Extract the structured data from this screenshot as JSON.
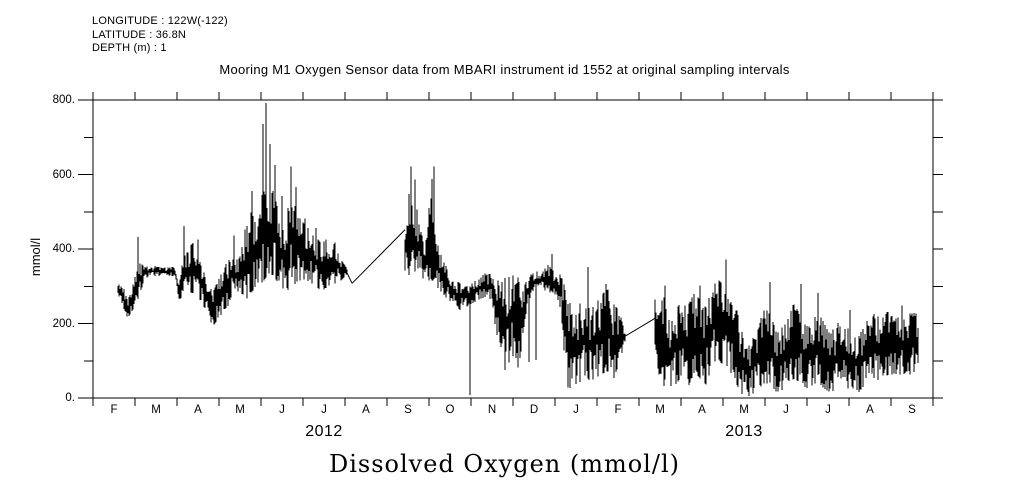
{
  "header": {
    "longitude": "LONGITUDE : 122W(-122)",
    "latitude": "LATITUDE : 36.8N",
    "depth": "DEPTH (m) : 1"
  },
  "title": "Mooring M1 Oxygen Sensor data from MBARI instrument id 1552 at original sampling intervals",
  "footer_label": "Dissolved Oxygen (mmol/l)",
  "chart_data": {
    "type": "line",
    "title": "Mooring M1 Oxygen Sensor data from MBARI instrument id 1552 at original sampling intervals",
    "xlabel": "Dissolved Oxygen (mmol/l)",
    "ylabel": "mmol/l",
    "units": "mmol/l",
    "line_color": "#000000",
    "background_color": "#ffffff",
    "grid": false,
    "ylim": [
      0,
      800
    ],
    "ytick_values": [
      0,
      200,
      400,
      600,
      800
    ],
    "ytick_labels": [
      "0.",
      "200.",
      "400.",
      "600.",
      "800."
    ],
    "yminor_step": 100,
    "x_span_months": 20,
    "x_start": "2012-02-01",
    "x_end": "2013-10-01",
    "month_labels": [
      "F",
      "M",
      "A",
      "M",
      "J",
      "J",
      "A",
      "S",
      "O",
      "N",
      "D",
      "J",
      "F",
      "M",
      "A",
      "M",
      "J",
      "J",
      "A",
      "S"
    ],
    "year_labels": [
      {
        "label": "2012",
        "month_center": 5.5
      },
      {
        "label": "2013",
        "month_center": 15.5
      }
    ],
    "series_name": "Dissolved Oxygen at Mooring M1, 1 m depth",
    "envelope_note": "triples [t_months_since_2012-02-01, band_low, band_high] in mmol/l, read from plot",
    "envelope": [
      [
        0.6,
        265,
        310
      ],
      [
        0.72,
        245,
        300
      ],
      [
        0.82,
        215,
        262
      ],
      [
        0.92,
        230,
        285
      ],
      [
        1.02,
        255,
        345
      ],
      [
        1.12,
        275,
        365
      ],
      [
        1.22,
        320,
        352
      ],
      [
        1.4,
        328,
        355
      ],
      [
        1.58,
        328,
        352
      ],
      [
        1.76,
        325,
        350
      ],
      [
        1.94,
        328,
        352
      ],
      [
        2.05,
        258,
        310
      ],
      [
        2.16,
        272,
        385
      ],
      [
        2.28,
        285,
        405
      ],
      [
        2.42,
        280,
        420
      ],
      [
        2.56,
        262,
        360
      ],
      [
        2.7,
        232,
        322
      ],
      [
        2.85,
        192,
        282
      ],
      [
        3.0,
        215,
        322
      ],
      [
        3.15,
        240,
        352
      ],
      [
        3.3,
        252,
        420
      ],
      [
        3.45,
        265,
        385
      ],
      [
        3.6,
        255,
        432
      ],
      [
        3.75,
        282,
        500
      ],
      [
        3.9,
        300,
        472
      ],
      [
        4.05,
        312,
        560
      ],
      [
        4.17,
        332,
        525
      ],
      [
        4.3,
        330,
        560
      ],
      [
        4.44,
        302,
        482
      ],
      [
        4.58,
        282,
        470
      ],
      [
        4.72,
        300,
        558
      ],
      [
        4.86,
        310,
        492
      ],
      [
        5.0,
        320,
        472
      ],
      [
        5.15,
        312,
        452
      ],
      [
        5.3,
        300,
        432
      ],
      [
        5.45,
        286,
        416
      ],
      [
        5.6,
        300,
        430
      ],
      [
        5.75,
        306,
        422
      ],
      [
        5.9,
        315,
        372
      ],
      [
        6.05,
        330,
        348
      ],
      [
        7.43,
        340,
        462
      ],
      [
        7.52,
        330,
        522
      ],
      [
        7.62,
        322,
        562
      ],
      [
        7.76,
        330,
        482
      ],
      [
        7.9,
        302,
        432
      ],
      [
        8.04,
        320,
        542
      ],
      [
        8.18,
        300,
        422
      ],
      [
        8.32,
        282,
        372
      ],
      [
        8.46,
        262,
        342
      ],
      [
        8.6,
        246,
        322
      ],
      [
        8.75,
        236,
        306
      ],
      [
        8.9,
        245,
        300
      ],
      [
        9.05,
        255,
        310
      ],
      [
        9.2,
        265,
        325
      ],
      [
        9.35,
        272,
        335
      ],
      [
        9.5,
        262,
        332
      ],
      [
        9.62,
        150,
        325
      ],
      [
        9.76,
        65,
        320
      ],
      [
        9.9,
        95,
        325
      ],
      [
        10.04,
        120,
        330
      ],
      [
        10.16,
        62,
        320
      ],
      [
        10.3,
        210,
        330
      ],
      [
        10.44,
        286,
        332
      ],
      [
        10.58,
        290,
        342
      ],
      [
        10.72,
        292,
        342
      ],
      [
        10.86,
        282,
        362
      ],
      [
        11.0,
        272,
        342
      ],
      [
        11.14,
        240,
        330
      ],
      [
        11.28,
        28,
        282
      ],
      [
        11.42,
        25,
        232
      ],
      [
        11.56,
        38,
        248
      ],
      [
        11.7,
        58,
        268
      ],
      [
        11.84,
        45,
        235
      ],
      [
        11.98,
        55,
        255
      ],
      [
        12.12,
        65,
        278
      ],
      [
        12.26,
        72,
        292
      ],
      [
        12.4,
        52,
        252
      ],
      [
        12.54,
        98,
        232
      ],
      [
        12.67,
        150,
        182
      ],
      [
        13.38,
        80,
        282
      ],
      [
        13.5,
        42,
        262
      ],
      [
        13.62,
        30,
        272
      ],
      [
        13.76,
        16,
        212
      ],
      [
        13.9,
        40,
        242
      ],
      [
        14.04,
        62,
        262
      ],
      [
        14.18,
        32,
        252
      ],
      [
        14.32,
        70,
        282
      ],
      [
        14.46,
        52,
        262
      ],
      [
        14.6,
        36,
        242
      ],
      [
        14.74,
        88,
        298
      ],
      [
        14.88,
        108,
        318
      ],
      [
        15.02,
        82,
        302
      ],
      [
        15.16,
        55,
        272
      ],
      [
        15.3,
        42,
        252
      ],
      [
        15.44,
        12,
        182
      ],
      [
        15.58,
        2,
        132
      ],
      [
        15.72,
        12,
        162
      ],
      [
        15.86,
        26,
        202
      ],
      [
        16.0,
        42,
        242
      ],
      [
        16.14,
        32,
        222
      ],
      [
        16.28,
        16,
        172
      ],
      [
        16.42,
        22,
        192
      ],
      [
        16.56,
        42,
        242
      ],
      [
        16.7,
        52,
        252
      ],
      [
        16.84,
        42,
        222
      ],
      [
        16.98,
        26,
        192
      ],
      [
        17.12,
        32,
        202
      ],
      [
        17.26,
        46,
        232
      ],
      [
        17.4,
        26,
        202
      ],
      [
        17.54,
        16,
        172
      ],
      [
        17.68,
        20,
        192
      ],
      [
        17.82,
        30,
        222
      ],
      [
        17.96,
        26,
        188
      ],
      [
        18.1,
        22,
        172
      ],
      [
        18.24,
        16,
        166
      ],
      [
        18.38,
        35,
        200
      ],
      [
        18.52,
        62,
        236
      ],
      [
        18.66,
        46,
        216
      ],
      [
        18.8,
        56,
        226
      ],
      [
        18.94,
        62,
        232
      ],
      [
        19.08,
        46,
        226
      ],
      [
        19.22,
        62,
        232
      ],
      [
        19.36,
        56,
        226
      ],
      [
        19.5,
        66,
        228
      ],
      [
        19.64,
        78,
        230
      ]
    ],
    "spikes_note": "narrow extreme excursions [t_months, value]",
    "spikes": [
      [
        1.07,
        432
      ],
      [
        2.17,
        462
      ],
      [
        2.5,
        425
      ],
      [
        3.35,
        436
      ],
      [
        3.62,
        452
      ],
      [
        3.78,
        556
      ],
      [
        4.05,
        736
      ],
      [
        4.12,
        792
      ],
      [
        4.22,
        682
      ],
      [
        4.34,
        626
      ],
      [
        4.5,
        542
      ],
      [
        4.72,
        622
      ],
      [
        4.84,
        566
      ],
      [
        5.05,
        482
      ],
      [
        5.3,
        456
      ],
      [
        7.52,
        548
      ],
      [
        7.57,
        622
      ],
      [
        7.66,
        586
      ],
      [
        8.06,
        588
      ],
      [
        8.13,
        622
      ],
      [
        8.98,
        8
      ],
      [
        10.38,
        96
      ],
      [
        10.55,
        102
      ],
      [
        10.92,
        386
      ],
      [
        11.78,
        352
      ],
      [
        12.22,
        306
      ],
      [
        13.62,
        302
      ],
      [
        14.45,
        302
      ],
      [
        15.07,
        372
      ],
      [
        16.12,
        312
      ],
      [
        16.85,
        306
      ],
      [
        17.25,
        282
      ],
      [
        18.02,
        236
      ],
      [
        19.25,
        248
      ]
    ],
    "gap_lines_note": "straight interpolation lines across data gaps [t1,v1,t2,v2]",
    "gap_lines": [
      [
        6.05,
        335,
        6.17,
        308
      ],
      [
        6.17,
        308,
        7.43,
        452
      ],
      [
        12.67,
        166,
        13.38,
        214
      ]
    ]
  }
}
